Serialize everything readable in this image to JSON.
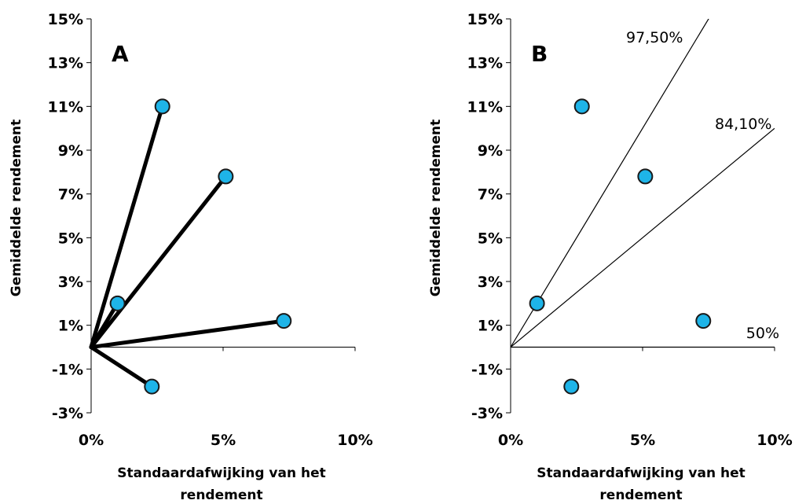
{
  "chart_data": [
    {
      "type": "scatter",
      "panel": "A",
      "xlabel_lines": [
        "Standaardafwijking van het",
        "rendement"
      ],
      "ylabel": "Gemiddelde rendement",
      "x_ticks": [
        "0%",
        "5%",
        "10%"
      ],
      "y_ticks": [
        "-3%",
        "-1%",
        "1%",
        "3%",
        "5%",
        "7%",
        "9%",
        "11%",
        "13%",
        "15%"
      ],
      "xlim": [
        0,
        10
      ],
      "ylim": [
        -3,
        15
      ],
      "points": [
        {
          "x": 2.7,
          "y": 11.0
        },
        {
          "x": 5.1,
          "y": 7.8
        },
        {
          "x": 1.0,
          "y": 2.0
        },
        {
          "x": 7.3,
          "y": 1.2
        },
        {
          "x": 2.3,
          "y": -1.8
        }
      ],
      "origin": {
        "x": 0,
        "y": 0
      },
      "rays_to_points": true
    },
    {
      "type": "scatter",
      "panel": "B",
      "xlabel_lines": [
        "Standaardafwijking van het",
        "rendement"
      ],
      "ylabel": "Gemiddelde rendement",
      "x_ticks": [
        "0%",
        "5%",
        "10%"
      ],
      "y_ticks": [
        "-3%",
        "-1%",
        "1%",
        "3%",
        "5%",
        "7%",
        "9%",
        "11%",
        "13%",
        "15%"
      ],
      "xlim": [
        0,
        10
      ],
      "ylim": [
        -3,
        15
      ],
      "points": [
        {
          "x": 2.7,
          "y": 11.0
        },
        {
          "x": 5.1,
          "y": 7.8
        },
        {
          "x": 1.0,
          "y": 2.0
        },
        {
          "x": 7.3,
          "y": 1.2
        },
        {
          "x": 2.3,
          "y": -1.8
        }
      ],
      "lines": [
        {
          "label": "97,50%",
          "slope": 2.0
        },
        {
          "label": "84,10%",
          "slope": 1.0
        },
        {
          "label": "50%",
          "slope": 0.0
        }
      ]
    }
  ],
  "colors": {
    "marker_fill": "#1eb4e8",
    "marker_stroke": "#1a1a1a",
    "axis": "#000000"
  }
}
